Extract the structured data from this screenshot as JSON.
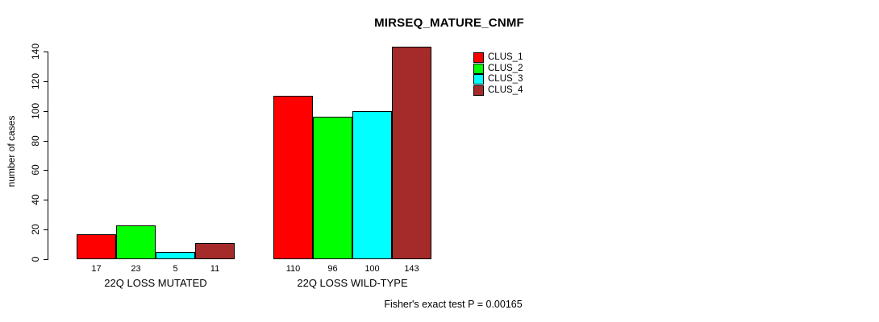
{
  "page": {
    "background": "#ffffff",
    "text_color": "#000000"
  },
  "chart_data": {
    "type": "bar",
    "title": "MIRSEQ_MATURE_CNMF",
    "xlabel": "",
    "ylabel": "number of cases",
    "footnote": "Fisher's exact test P = 0.00165",
    "categories": [
      "22Q LOSS MUTATED",
      "22Q LOSS WILD-TYPE"
    ],
    "series": [
      {
        "name": "CLUS_1",
        "color": "#ff0000",
        "values": [
          17,
          110
        ]
      },
      {
        "name": "CLUS_2",
        "color": "#00ff00",
        "values": [
          23,
          96
        ]
      },
      {
        "name": "CLUS_3",
        "color": "#00ffff",
        "values": [
          5,
          100
        ]
      },
      {
        "name": "CLUS_4",
        "color": "#a52a2a",
        "values": [
          11,
          143
        ]
      }
    ],
    "yticks": [
      0,
      20,
      40,
      60,
      80,
      100,
      120,
      140
    ],
    "ylim": [
      0,
      140
    ],
    "bar_value_labels": true,
    "bar_border_color": "#000000",
    "grid": false,
    "legend_position": "top-right"
  }
}
